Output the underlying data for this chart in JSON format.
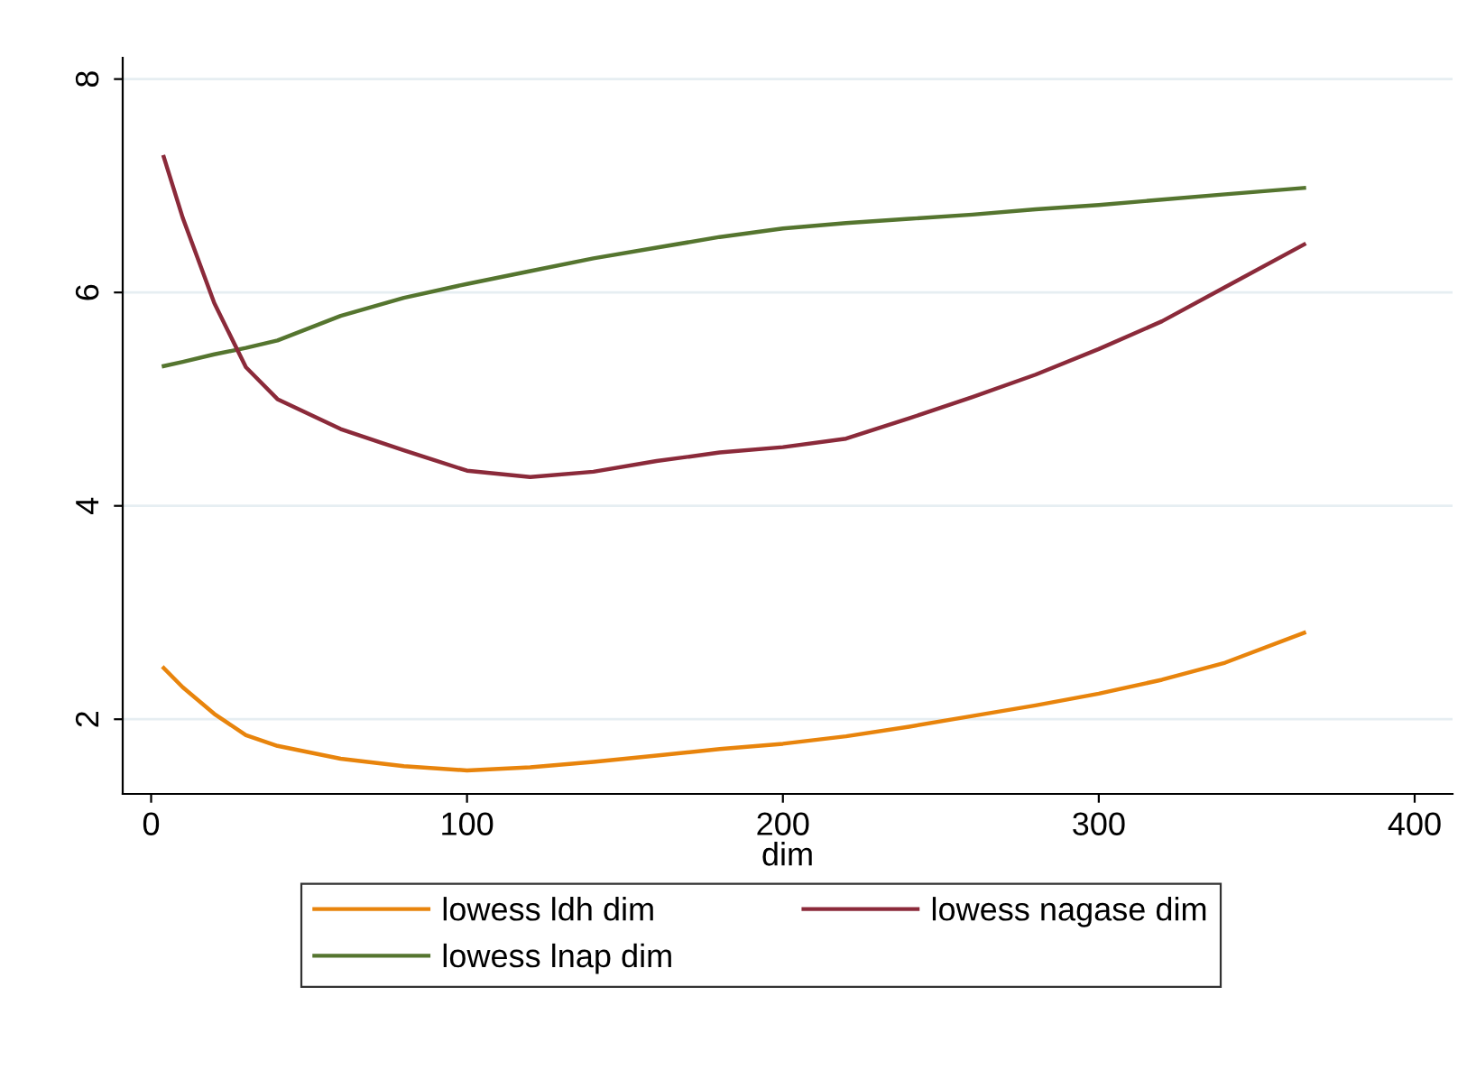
{
  "chart_data": {
    "type": "line",
    "xlabel": "dim",
    "xlim": [
      -9,
      412
    ],
    "xticks": [
      0,
      100,
      200,
      300,
      400
    ],
    "ylim": [
      1.3,
      8.2
    ],
    "yticks": [
      2,
      4,
      6,
      8
    ],
    "grid": "y",
    "legend": "bottom",
    "marker": "none",
    "line_style": "solid",
    "x": [
      4,
      10,
      20,
      30,
      40,
      60,
      80,
      100,
      120,
      140,
      160,
      180,
      200,
      220,
      240,
      260,
      280,
      300,
      320,
      340,
      365
    ],
    "series": [
      {
        "name": "lowess ldh dim",
        "color": "#e8840c",
        "values": [
          2.48,
          2.3,
          2.05,
          1.85,
          1.75,
          1.63,
          1.56,
          1.52,
          1.55,
          1.6,
          1.66,
          1.72,
          1.77,
          1.84,
          1.93,
          2.03,
          2.13,
          2.24,
          2.37,
          2.53,
          2.81
        ]
      },
      {
        "name": "lowess lnap dim",
        "color": "#55752f",
        "values": [
          5.31,
          5.35,
          5.42,
          5.48,
          5.55,
          5.78,
          5.95,
          6.08,
          6.2,
          6.32,
          6.42,
          6.52,
          6.6,
          6.65,
          6.69,
          6.73,
          6.78,
          6.82,
          6.87,
          6.92,
          6.98
        ]
      },
      {
        "name": "lowess nagase dim",
        "color": "#8b2a3a",
        "values": [
          7.27,
          6.7,
          5.9,
          5.3,
          5.0,
          4.72,
          4.52,
          4.33,
          4.27,
          4.32,
          4.42,
          4.5,
          4.55,
          4.63,
          4.82,
          5.02,
          5.23,
          5.47,
          5.73,
          6.05,
          6.45
        ]
      }
    ]
  }
}
